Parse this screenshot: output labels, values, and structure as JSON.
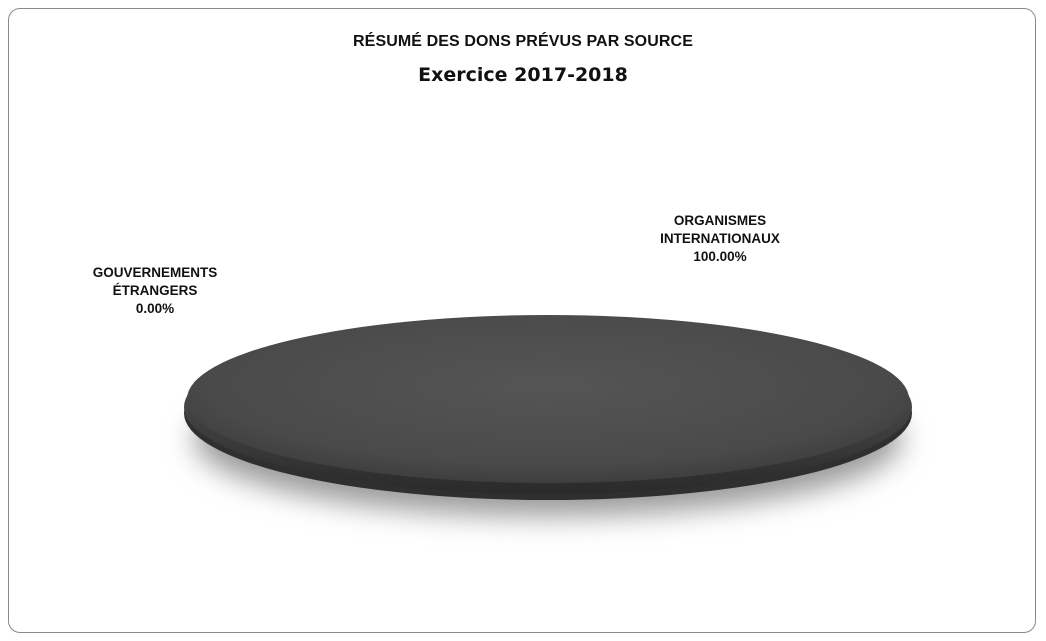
{
  "chart_data": {
    "type": "pie",
    "title": "RÉSUMÉ DES DONS PRÉVUS PAR SOURCE",
    "subtitle": "Exercice 2017-2018",
    "slices": [
      {
        "name_lines": [
          "GOUVERNEMENTS",
          "ÉTRANGERS"
        ],
        "value_label": "0.00%",
        "value": 0.0
      },
      {
        "name_lines": [
          "ORGANISMES",
          "INTERNATIONAUX"
        ],
        "value_label": "100.00%",
        "value": 100.0
      }
    ],
    "colors": {
      "slice_main": "#4a4a4a",
      "slice_dark": "#2f2f2f",
      "shadow": "#9a9a9a"
    }
  }
}
